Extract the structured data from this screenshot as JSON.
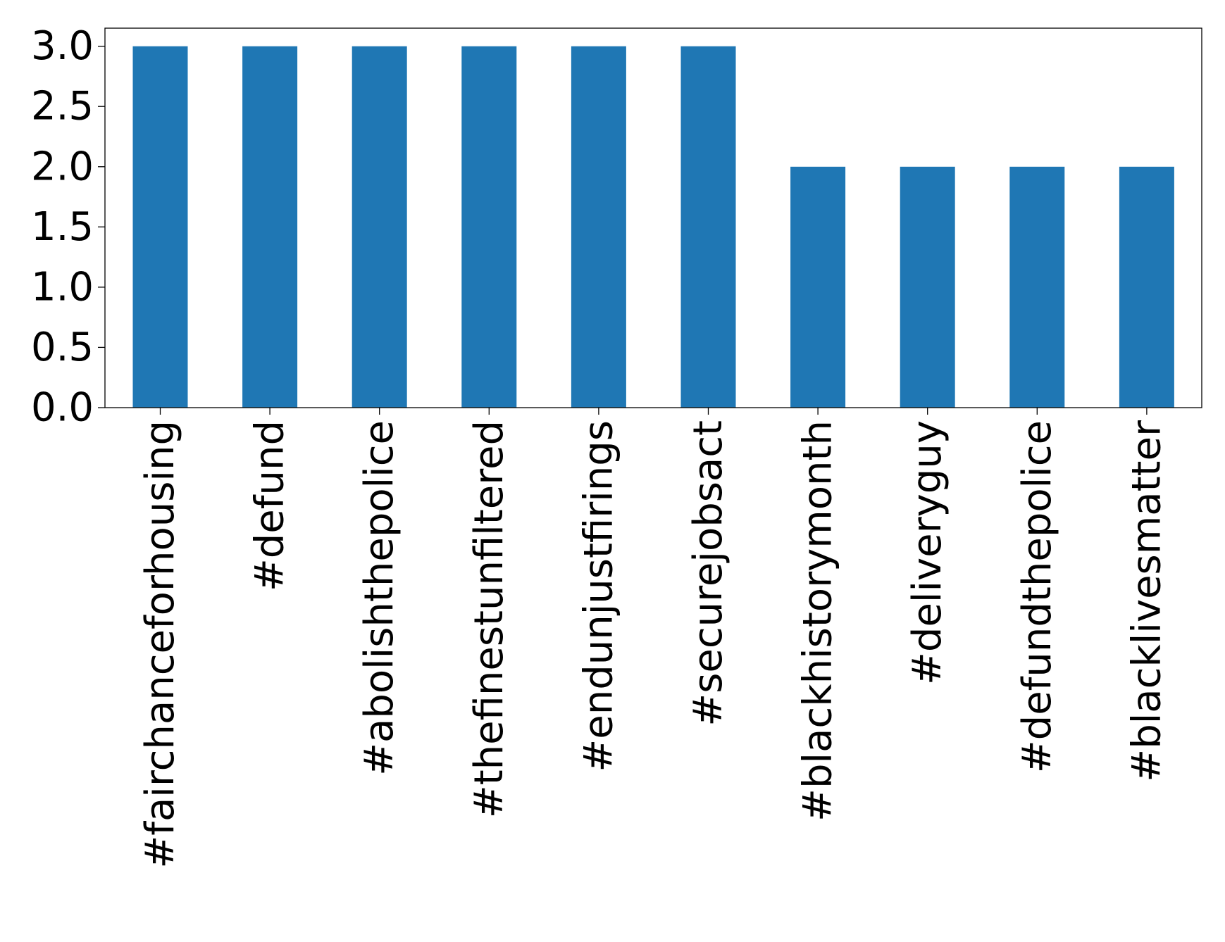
{
  "chart_data": {
    "type": "bar",
    "categories": [
      "#fairchanceforhousing",
      "#defund",
      "#abolishthepolice",
      "#thefinestunfiltered",
      "#endunjustfirings",
      "#securejobsact",
      "#blackhistorymonth",
      "#deliveryguy",
      "#defundthepolice",
      "#blacklivesmatter"
    ],
    "values": [
      3,
      3,
      3,
      3,
      3,
      3,
      2,
      2,
      2,
      2
    ],
    "yticks": [
      "0.0",
      "0.5",
      "1.0",
      "1.5",
      "2.0",
      "2.5",
      "3.0"
    ],
    "ylim": [
      0,
      3.15
    ],
    "bar_color": "#1f77b4",
    "grid": false,
    "legend": "none"
  }
}
